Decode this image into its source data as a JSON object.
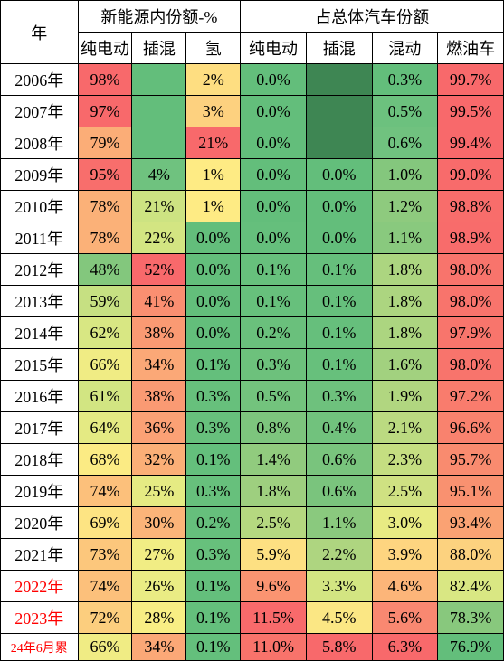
{
  "headers": {
    "year": "年",
    "group1": "新能源内份额-%",
    "group2": "占总体汽车份额",
    "sub": [
      "纯电动",
      "插混",
      "氢",
      "纯电动",
      "插混",
      "混动",
      "燃油车"
    ]
  },
  "years": [
    {
      "label": "2006年",
      "red": false
    },
    {
      "label": "2007年",
      "red": false
    },
    {
      "label": "2008年",
      "red": false
    },
    {
      "label": "2009年",
      "red": false
    },
    {
      "label": "2010年",
      "red": false
    },
    {
      "label": "2011年",
      "red": false
    },
    {
      "label": "2012年",
      "red": false
    },
    {
      "label": "2013年",
      "red": false
    },
    {
      "label": "2014年",
      "red": false
    },
    {
      "label": "2015年",
      "red": false
    },
    {
      "label": "2016年",
      "red": false
    },
    {
      "label": "2017年",
      "red": false
    },
    {
      "label": "2018年",
      "red": false
    },
    {
      "label": "2019年",
      "red": false
    },
    {
      "label": "2020年",
      "red": false
    },
    {
      "label": "2021年",
      "red": false
    },
    {
      "label": "2022年",
      "red": true
    },
    {
      "label": "2023年",
      "red": true
    },
    {
      "label": "24年6月累",
      "red": true,
      "small": true
    }
  ],
  "cells": [
    [
      {
        "v": "98%",
        "c": "#f8696b"
      },
      {
        "v": "",
        "c": "#63be7b"
      },
      {
        "v": "2%",
        "c": "#fede81"
      },
      {
        "v": "0.0%",
        "c": "#63be7b"
      },
      {
        "v": "",
        "c": "#3e8653"
      },
      {
        "v": "0.3%",
        "c": "#63be7b"
      },
      {
        "v": "99.7%",
        "c": "#f8696b"
      }
    ],
    [
      {
        "v": "97%",
        "c": "#f8696b"
      },
      {
        "v": "",
        "c": "#63be7b"
      },
      {
        "v": "3%",
        "c": "#fdd17f"
      },
      {
        "v": "0.0%",
        "c": "#63be7b"
      },
      {
        "v": "",
        "c": "#3e8653"
      },
      {
        "v": "0.5%",
        "c": "#6cc17e"
      },
      {
        "v": "99.5%",
        "c": "#f8696b"
      }
    ],
    [
      {
        "v": "79%",
        "c": "#fbad77"
      },
      {
        "v": "",
        "c": "#63be7b"
      },
      {
        "v": "21%",
        "c": "#f8696b"
      },
      {
        "v": "0.0%",
        "c": "#63be7b"
      },
      {
        "v": "",
        "c": "#3e8653"
      },
      {
        "v": "0.6%",
        "c": "#70c27f"
      },
      {
        "v": "99.4%",
        "c": "#f8696b"
      }
    ],
    [
      {
        "v": "95%",
        "c": "#f86e6c"
      },
      {
        "v": "4%",
        "c": "#6fc27f"
      },
      {
        "v": "1%",
        "c": "#feeb84"
      },
      {
        "v": "0.0%",
        "c": "#63be7b"
      },
      {
        "v": "0.0%",
        "c": "#63be7b"
      },
      {
        "v": "1.0%",
        "c": "#84c77d"
      },
      {
        "v": "99.0%",
        "c": "#f86b6b"
      }
    ],
    [
      {
        "v": "78%",
        "c": "#fbb178"
      },
      {
        "v": "21%",
        "c": "#cde382"
      },
      {
        "v": "1%",
        "c": "#feeb84"
      },
      {
        "v": "0.0%",
        "c": "#63be7b"
      },
      {
        "v": "0.0%",
        "c": "#63be7b"
      },
      {
        "v": "1.2%",
        "c": "#8eca7e"
      },
      {
        "v": "98.8%",
        "c": "#f86d6b"
      }
    ],
    [
      {
        "v": "78%",
        "c": "#fbb178"
      },
      {
        "v": "22%",
        "c": "#d3e582"
      },
      {
        "v": "0.0%",
        "c": "#63be7b"
      },
      {
        "v": "0.0%",
        "c": "#65bf7c"
      },
      {
        "v": "0.0%",
        "c": "#63be7b"
      },
      {
        "v": "1.1%",
        "c": "#89c97e"
      },
      {
        "v": "98.9%",
        "c": "#f86c6b"
      }
    ],
    [
      {
        "v": "48%",
        "c": "#83c77d"
      },
      {
        "v": "52%",
        "c": "#f8696b"
      },
      {
        "v": "0.0%",
        "c": "#63be7b"
      },
      {
        "v": "0.1%",
        "c": "#67c07c"
      },
      {
        "v": "0.1%",
        "c": "#66bf7c"
      },
      {
        "v": "1.8%",
        "c": "#acd580"
      },
      {
        "v": "98.0%",
        "c": "#f8746c"
      }
    ],
    [
      {
        "v": "59%",
        "c": "#c6e082"
      },
      {
        "v": "41%",
        "c": "#fa8f71"
      },
      {
        "v": "0.0%",
        "c": "#63be7b"
      },
      {
        "v": "0.1%",
        "c": "#67c07c"
      },
      {
        "v": "0.1%",
        "c": "#66bf7c"
      },
      {
        "v": "1.8%",
        "c": "#acd580"
      },
      {
        "v": "98.0%",
        "c": "#f8746c"
      }
    ],
    [
      {
        "v": "62%",
        "c": "#d8e783"
      },
      {
        "v": "38%",
        "c": "#fa9a73"
      },
      {
        "v": "0.0%",
        "c": "#63be7b"
      },
      {
        "v": "0.2%",
        "c": "#6ac07c"
      },
      {
        "v": "0.1%",
        "c": "#66bf7c"
      },
      {
        "v": "1.8%",
        "c": "#acd580"
      },
      {
        "v": "97.9%",
        "c": "#f8756c"
      }
    ],
    [
      {
        "v": "66%",
        "c": "#f0ec84"
      },
      {
        "v": "34%",
        "c": "#fba877"
      },
      {
        "v": "0.1%",
        "c": "#64bf7c"
      },
      {
        "v": "0.3%",
        "c": "#6dc17c"
      },
      {
        "v": "0.1%",
        "c": "#67c07c"
      },
      {
        "v": "1.6%",
        "c": "#a2d17f"
      },
      {
        "v": "98.0%",
        "c": "#f8746c"
      }
    ],
    [
      {
        "v": "61%",
        "c": "#d2e582"
      },
      {
        "v": "38%",
        "c": "#fa9a73"
      },
      {
        "v": "0.3%",
        "c": "#67c07c"
      },
      {
        "v": "0.5%",
        "c": "#73c37d"
      },
      {
        "v": "0.3%",
        "c": "#6ec17d"
      },
      {
        "v": "1.9%",
        "c": "#b1d680"
      },
      {
        "v": "97.2%",
        "c": "#f97c6d"
      }
    ],
    [
      {
        "v": "64%",
        "c": "#e4ea83"
      },
      {
        "v": "36%",
        "c": "#fba175"
      },
      {
        "v": "0.3%",
        "c": "#67c07c"
      },
      {
        "v": "0.8%",
        "c": "#7dc57d"
      },
      {
        "v": "0.4%",
        "c": "#71c27d"
      },
      {
        "v": "2.1%",
        "c": "#bbda81"
      },
      {
        "v": "96.6%",
        "c": "#f9826e"
      }
    ],
    [
      {
        "v": "68%",
        "c": "#fbeb84"
      },
      {
        "v": "32%",
        "c": "#fbaf77"
      },
      {
        "v": "0.1%",
        "c": "#64bf7c"
      },
      {
        "v": "1.4%",
        "c": "#91cb7e"
      },
      {
        "v": "0.6%",
        "c": "#79c47d"
      },
      {
        "v": "2.3%",
        "c": "#c5de81"
      },
      {
        "v": "95.7%",
        "c": "#f98b6f"
      }
    ],
    [
      {
        "v": "74%",
        "c": "#fcc07b"
      },
      {
        "v": "25%",
        "c": "#e5eb83"
      },
      {
        "v": "0.3%",
        "c": "#67c07c"
      },
      {
        "v": "1.8%",
        "c": "#9ecf7f"
      },
      {
        "v": "0.6%",
        "c": "#7ac47d"
      },
      {
        "v": "2.5%",
        "c": "#cfe182"
      },
      {
        "v": "95.1%",
        "c": "#f99170"
      }
    ],
    [
      {
        "v": "69%",
        "c": "#fde483"
      },
      {
        "v": "30%",
        "c": "#fbb479"
      },
      {
        "v": "0.2%",
        "c": "#66bf7c"
      },
      {
        "v": "2.5%",
        "c": "#b5d880"
      },
      {
        "v": "1.1%",
        "c": "#8ac97e"
      },
      {
        "v": "3.0%",
        "c": "#e8eb83"
      },
      {
        "v": "93.4%",
        "c": "#faa273"
      }
    ],
    [
      {
        "v": "73%",
        "c": "#fcc77c"
      },
      {
        "v": "27%",
        "c": "#f1ed84"
      },
      {
        "v": "0.3%",
        "c": "#67c07c"
      },
      {
        "v": "5.9%",
        "c": "#fde082"
      },
      {
        "v": "2.2%",
        "c": "#aed580"
      },
      {
        "v": "3.9%",
        "c": "#fed580"
      },
      {
        "v": "88.0%",
        "c": "#fcd27f"
      }
    ],
    [
      {
        "v": "74%",
        "c": "#fcc07b"
      },
      {
        "v": "26%",
        "c": "#eaec84"
      },
      {
        "v": "0.1%",
        "c": "#64bf7c"
      },
      {
        "v": "9.6%",
        "c": "#fa9471"
      },
      {
        "v": "3.3%",
        "c": "#d3e582"
      },
      {
        "v": "4.6%",
        "c": "#fcb579"
      },
      {
        "v": "82.4%",
        "c": "#d9e783"
      }
    ],
    [
      {
        "v": "72%",
        "c": "#fcce7e"
      },
      {
        "v": "28%",
        "c": "#f8ee84"
      },
      {
        "v": "0.1%",
        "c": "#64bf7c"
      },
      {
        "v": "11.5%",
        "c": "#f86a6b"
      },
      {
        "v": "4.5%",
        "c": "#fbe784"
      },
      {
        "v": "5.6%",
        "c": "#f98871"
      },
      {
        "v": "78.3%",
        "c": "#88c87d"
      }
    ],
    [
      {
        "v": "66%",
        "c": "#f0ec84"
      },
      {
        "v": "34%",
        "c": "#fba877"
      },
      {
        "v": "0.1%",
        "c": "#64bf7c"
      },
      {
        "v": "11.0%",
        "c": "#f8736b"
      },
      {
        "v": "5.8%",
        "c": "#f8696b"
      },
      {
        "v": "6.3%",
        "c": "#f8696b"
      },
      {
        "v": "76.9%",
        "c": "#63be7b"
      }
    ]
  ]
}
